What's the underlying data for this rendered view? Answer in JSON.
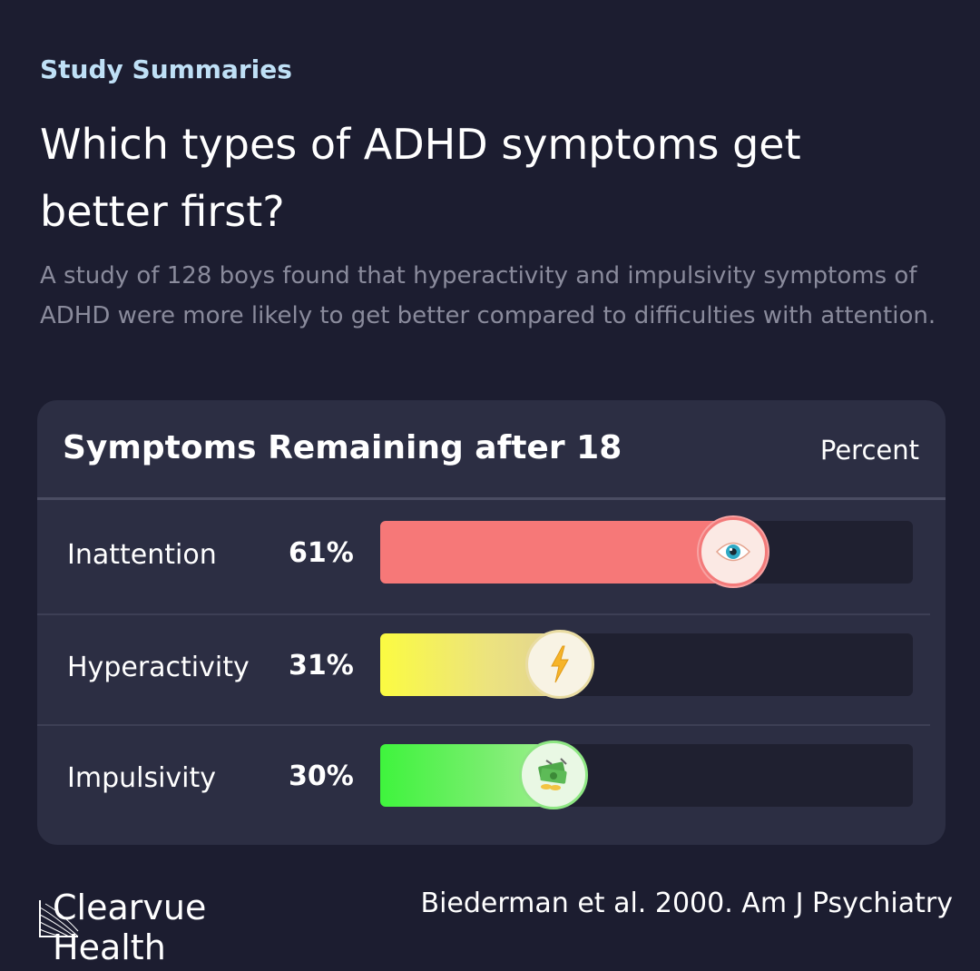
{
  "header": {
    "eyebrow": "Study Summaries",
    "title": "Which types of ADHD symptoms get better first?",
    "description": "A study of 128 boys found that hyperactivity and impulsivity symptoms of ADHD were more likely to get better compared to difficulties with attention."
  },
  "chart_data": {
    "type": "bar",
    "orientation": "horizontal",
    "title": "Symptoms Remaining after 18",
    "unit_label": "Percent",
    "xlim": [
      0,
      100
    ],
    "categories": [
      "Inattention",
      "Hyperactivity",
      "Impulsivity"
    ],
    "values": [
      61,
      31,
      30
    ],
    "value_labels": [
      "61%",
      "31%",
      "30%"
    ],
    "colors": [
      "#f67878",
      "#f7f458",
      "#49f04c"
    ],
    "icons": [
      "eye-icon",
      "lightning-icon",
      "money-icon"
    ]
  },
  "footer": {
    "brand": "Clearvue Health",
    "citation": "Biederman et al. 2000. Am J Psychiatry"
  }
}
